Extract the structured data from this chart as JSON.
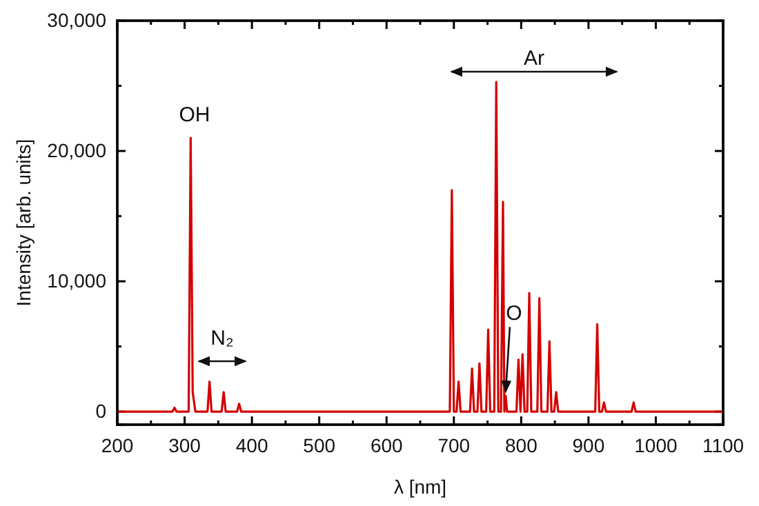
{
  "chart_data": {
    "type": "line",
    "xlabel": "λ [nm]",
    "ylabel": "Intensity [arb. units]",
    "xlim": [
      200,
      1100
    ],
    "xticks": [
      200,
      300,
      400,
      500,
      600,
      700,
      800,
      900,
      1000,
      1100
    ],
    "ylim": [
      -1000,
      30000
    ],
    "yticks": [
      0,
      {
        "value": 10000,
        "label": "10,000"
      },
      {
        "value": 20000,
        "label": "20,000"
      },
      {
        "value": 30000,
        "label": "30,000"
      }
    ],
    "marker": "none",
    "line_style": "solid",
    "series": [
      {
        "color": "#d40000",
        "x": [
          200,
          282,
          285,
          288,
          306,
          309,
          312,
          316,
          334,
          337,
          340,
          355,
          358,
          361,
          378,
          381,
          384,
          694,
          697,
          700,
          704,
          707,
          710,
          724,
          727,
          730,
          735,
          738,
          741,
          748,
          751,
          754,
          760,
          763,
          766,
          770,
          773,
          775,
          777,
          779,
          793,
          796,
          799,
          802,
          805,
          809,
          812,
          815,
          824,
          827,
          830,
          839,
          842,
          845,
          849,
          852,
          855,
          910,
          913,
          916,
          920,
          923,
          926,
          964,
          967,
          970,
          1100
        ],
        "values": [
          0,
          0,
          300,
          0,
          0,
          21000,
          1500,
          0,
          0,
          2300,
          0,
          0,
          1500,
          0,
          0,
          600,
          0,
          0,
          17000,
          0,
          0,
          2300,
          0,
          0,
          3300,
          0,
          0,
          3700,
          0,
          0,
          6300,
          0,
          0,
          25300,
          0,
          0,
          16100,
          0,
          1200,
          0,
          0,
          4000,
          0,
          4400,
          0,
          0,
          9100,
          0,
          0,
          8700,
          0,
          0,
          5400,
          0,
          0,
          1500,
          0,
          0,
          6700,
          0,
          0,
          700,
          0,
          0,
          700,
          0,
          0
        ]
      }
    ],
    "annotations": [
      "OH",
      "N₂",
      "Ar",
      {
        "text": "O",
        "x": 777,
        "y": 1200
      }
    ]
  }
}
